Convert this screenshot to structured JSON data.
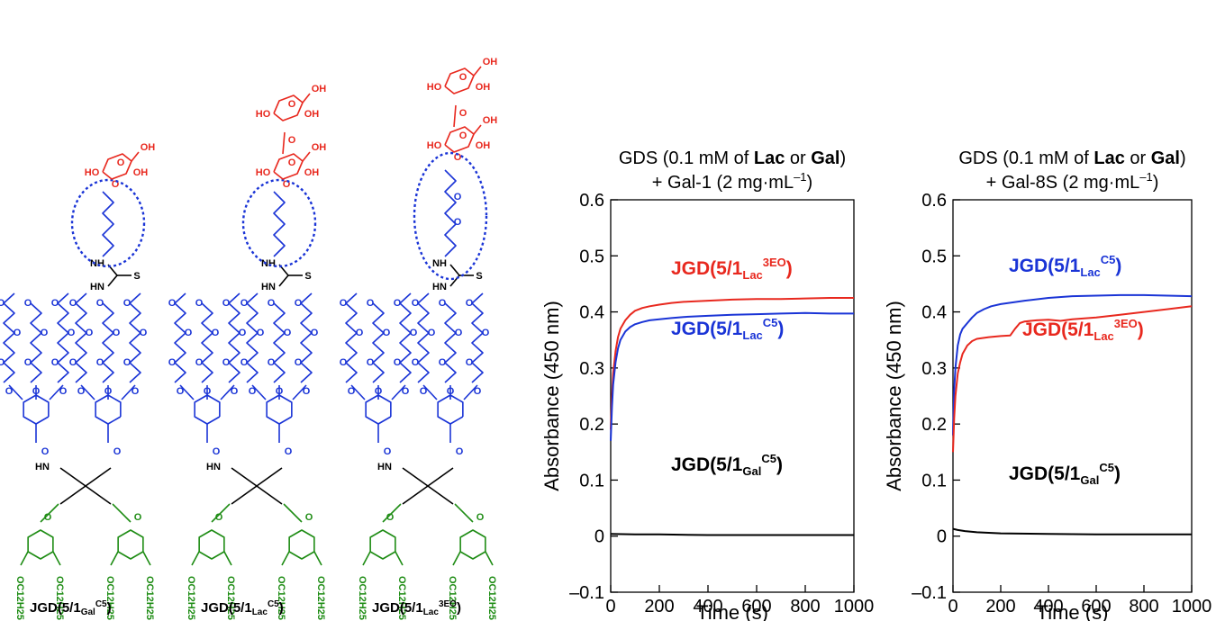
{
  "structures": {
    "colors": {
      "sugar": "#e8281e",
      "linker": "#1a34d6",
      "thiourea": "#000000",
      "peg": "#1a34d6",
      "core": "#000000",
      "alkyl": "#1e8c14",
      "ellipse": "#1a34d6"
    },
    "atoms": {
      "oh": "OH",
      "ho": "HO",
      "o": "O",
      "nh": "NH",
      "hn": "HN",
      "hn_amide": "HN",
      "s": "S",
      "c12h25": "OC12H25"
    },
    "items": [
      {
        "main": "JGD(5/1",
        "sub": "Gal",
        "sup": "C5",
        "close": ")",
        "sugar": "galactose",
        "linker": "C5"
      },
      {
        "main": "JGD(5/1",
        "sub": "Lac",
        "sup": "C5",
        "close": ")",
        "sugar": "lactose",
        "linker": "C5"
      },
      {
        "main": "JGD(5/1",
        "sub": "Lac",
        "sup": "3EO",
        "close": ")",
        "sugar": "lactose",
        "linker": "3EO"
      }
    ]
  },
  "chart_data": [
    {
      "type": "line",
      "title_parts": [
        {
          "text": "GDS (0.1 mM of ",
          "bold": false
        },
        {
          "text": "Lac",
          "bold": true
        },
        {
          "text": " or ",
          "bold": false
        },
        {
          "text": "Gal",
          "bold": true
        },
        {
          "text": ")",
          "bold": false
        }
      ],
      "subtitle": {
        "main": "+ Gal-1 (2 mg·mL",
        "sup": "–1",
        "close": ")"
      },
      "xlabel": "Time (s)",
      "ylabel": "Absorbance (450 nm)",
      "xlim": [
        0,
        1000
      ],
      "ylim": [
        -0.1,
        0.6
      ],
      "xticks": [
        "0",
        "200",
        "400",
        "600",
        "800",
        "1000"
      ],
      "yticks": [
        "–0.1",
        "0",
        "0.1",
        "0.2",
        "0.3",
        "0.4",
        "0.5",
        "0.6"
      ],
      "series": [
        {
          "main": "JGD(5/1",
          "sub": "Lac",
          "sup": "3EO",
          "close": ")",
          "color": "#e8281e",
          "x": [
            0,
            5,
            10,
            20,
            30,
            40,
            60,
            80,
            100,
            130,
            160,
            200,
            250,
            300,
            400,
            500,
            600,
            700,
            800,
            900,
            1000
          ],
          "y": [
            0.19,
            0.25,
            0.29,
            0.33,
            0.355,
            0.37,
            0.385,
            0.395,
            0.402,
            0.407,
            0.41,
            0.413,
            0.416,
            0.418,
            0.42,
            0.422,
            0.423,
            0.423,
            0.424,
            0.425,
            0.425
          ]
        },
        {
          "main": "JGD(5/1",
          "sub": "Lac",
          "sup": "C5",
          "close": ")",
          "color": "#1a34d6",
          "x": [
            0,
            5,
            10,
            20,
            30,
            40,
            60,
            80,
            100,
            130,
            160,
            200,
            250,
            300,
            400,
            500,
            600,
            700,
            800,
            900,
            1000
          ],
          "y": [
            0.17,
            0.23,
            0.27,
            0.31,
            0.335,
            0.35,
            0.365,
            0.373,
            0.378,
            0.382,
            0.385,
            0.387,
            0.389,
            0.391,
            0.393,
            0.395,
            0.396,
            0.397,
            0.398,
            0.397,
            0.397
          ]
        },
        {
          "main": "JGD(5/1",
          "sub": "Gal",
          "sup": "C5",
          "close": ")",
          "color": "#000000",
          "x": [
            0,
            100,
            200,
            400,
            600,
            800,
            1000
          ],
          "y": [
            0.004,
            0.003,
            0.003,
            0.002,
            0.002,
            0.002,
            0.002
          ]
        }
      ]
    },
    {
      "type": "line",
      "title_parts": [
        {
          "text": "GDS (0.1 mM of ",
          "bold": false
        },
        {
          "text": "Lac",
          "bold": true
        },
        {
          "text": " or ",
          "bold": false
        },
        {
          "text": "Gal",
          "bold": true
        },
        {
          "text": ")",
          "bold": false
        }
      ],
      "subtitle": {
        "main": "+ Gal-8S (2 mg·mL",
        "sup": "–1",
        "close": ")"
      },
      "xlabel": "Time (s)",
      "ylabel": "Absorbance (450 nm)",
      "xlim": [
        0,
        1000
      ],
      "ylim": [
        -0.1,
        0.6
      ],
      "xticks": [
        "0",
        "200",
        "400",
        "600",
        "800",
        "1000"
      ],
      "yticks": [
        "–0.1",
        "0",
        "0.1",
        "0.2",
        "0.3",
        "0.4",
        "0.5",
        "0.6"
      ],
      "series": [
        {
          "main": "JGD(5/1",
          "sub": "Lac",
          "sup": "C5",
          "close": ")",
          "color": "#1a34d6",
          "x": [
            0,
            5,
            10,
            20,
            30,
            40,
            60,
            80,
            100,
            130,
            160,
            200,
            250,
            300,
            400,
            500,
            600,
            700,
            800,
            900,
            1000
          ],
          "y": [
            0.18,
            0.26,
            0.3,
            0.34,
            0.36,
            0.37,
            0.38,
            0.39,
            0.398,
            0.405,
            0.41,
            0.414,
            0.417,
            0.42,
            0.425,
            0.428,
            0.429,
            0.43,
            0.43,
            0.429,
            0.428
          ]
        },
        {
          "main": "JGD(5/1",
          "sub": "Lac",
          "sup": "3EO",
          "close": ")",
          "color": "#e8281e",
          "x": [
            0,
            5,
            10,
            20,
            30,
            40,
            60,
            80,
            100,
            150,
            200,
            240,
            260,
            280,
            300,
            350,
            400,
            450,
            500,
            600,
            700,
            800,
            900,
            1000
          ],
          "y": [
            0.15,
            0.21,
            0.25,
            0.29,
            0.31,
            0.325,
            0.34,
            0.348,
            0.352,
            0.355,
            0.357,
            0.358,
            0.37,
            0.38,
            0.383,
            0.385,
            0.386,
            0.384,
            0.387,
            0.39,
            0.395,
            0.4,
            0.405,
            0.41
          ]
        },
        {
          "main": "JGD(5/1",
          "sub": "Gal",
          "sup": "C5",
          "close": ")",
          "color": "#000000",
          "x": [
            0,
            20,
            50,
            100,
            200,
            400,
            600,
            800,
            1000
          ],
          "y": [
            0.013,
            0.011,
            0.009,
            0.007,
            0.005,
            0.004,
            0.003,
            0.003,
            0.003
          ]
        }
      ]
    }
  ]
}
